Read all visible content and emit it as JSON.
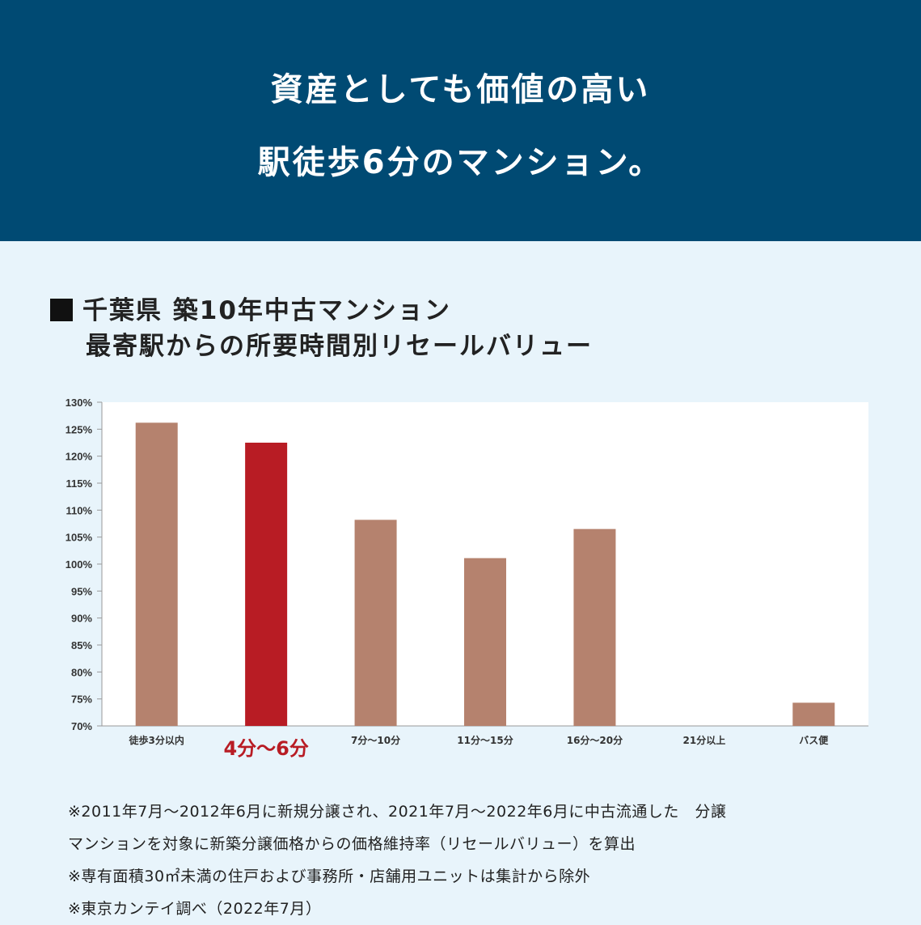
{
  "banner": {
    "line1": "資産としても価値の高い",
    "line2": "駅徒歩6分のマンション。"
  },
  "colors": {
    "banner_bg": "#004a73",
    "page_bg": "#e8f4fb",
    "bar": "#b5826e",
    "highlight_bar": "#b81c24"
  },
  "chart_data": {
    "type": "bar",
    "title_line1": "千葉県 築10年中古マンション",
    "title_line2": "最寄駅からの所要時間別リセールバリュー",
    "categories": [
      "徒歩3分以内",
      "4分～6分",
      "7分～10分",
      "11分～15分",
      "16分～20分",
      "21分以上",
      "バス便"
    ],
    "values": [
      126.2,
      122.5,
      108.2,
      101.1,
      106.5,
      null,
      74.3
    ],
    "highlight_index": 1,
    "ylim": [
      70,
      130
    ],
    "yticks": [
      "130%",
      "125%",
      "120%",
      "115%",
      "110%",
      "105%",
      "100%",
      "95%",
      "90%",
      "85%",
      "80%",
      "75%",
      "70%"
    ],
    "grid": false,
    "legend": "none"
  },
  "notes": [
    "※2011年7月～2012年6月に新規分譲され、2021年7月～2022年6月に中古流通した　分譲",
    "マンションを対象に新築分譲価格からの価格維持率（リセールバリュー）を算出",
    "※専有面積30㎡未満の住戸および事務所・店舗用ユニットは集計から除外",
    "※東京カンテイ調べ（2022年7月）"
  ]
}
